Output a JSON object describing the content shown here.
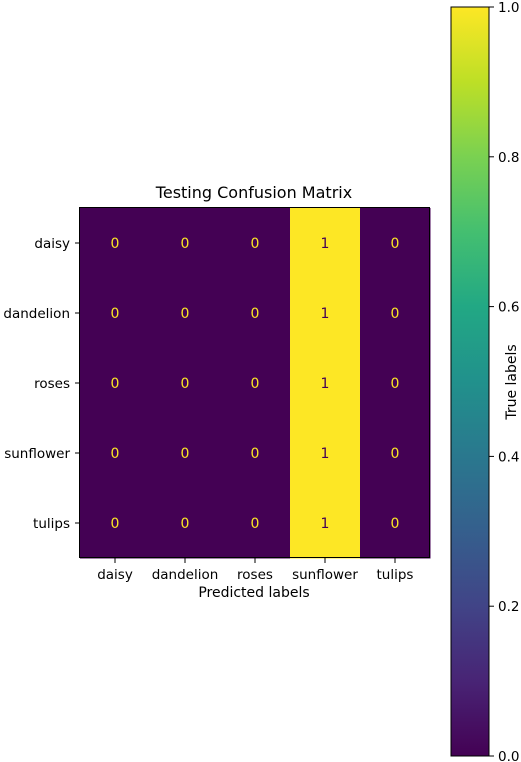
{
  "chart_data": {
    "type": "heatmap",
    "title": "Testing Confusion Matrix",
    "xlabel": "Predicted labels",
    "ylabel": "",
    "row_labels": [
      "daisy",
      "dandelion",
      "roses",
      "sunflower",
      "tulips"
    ],
    "col_labels": [
      "daisy",
      "dandelion",
      "roses",
      "sunflower",
      "tulips"
    ],
    "matrix": [
      [
        0,
        0,
        0,
        1,
        0
      ],
      [
        0,
        0,
        0,
        1,
        0
      ],
      [
        0,
        0,
        0,
        1,
        0
      ],
      [
        0,
        0,
        0,
        1,
        0
      ],
      [
        0,
        0,
        0,
        1,
        0
      ]
    ],
    "colorbar": {
      "label": "True labels",
      "range": [
        0.0,
        1.0
      ],
      "ticks": [
        0.0,
        0.2,
        0.4,
        0.6,
        0.8,
        1.0
      ],
      "tick_labels": [
        "0.0",
        "0.2",
        "0.4",
        "0.6",
        "0.8",
        "1.0"
      ],
      "colormap": "viridis"
    },
    "colors": {
      "low": "#440154",
      "high": "#fde725",
      "text_on_low": "#fde725",
      "text_on_high": "#440154"
    }
  }
}
